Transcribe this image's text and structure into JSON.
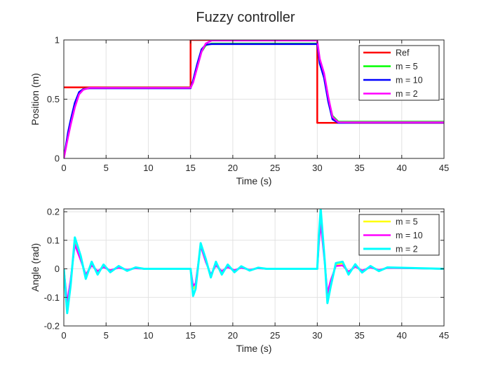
{
  "figure": {
    "title": "Fuzzy controller"
  },
  "chart_data": [
    {
      "type": "line",
      "title": "Fuzzy controller",
      "xlabel": "Time (s)",
      "ylabel": "Position (m)",
      "xlim": [
        0,
        45
      ],
      "ylim": [
        0,
        1
      ],
      "xticks": [
        0,
        5,
        10,
        15,
        20,
        25,
        30,
        35,
        40,
        45
      ],
      "yticks": [
        0,
        0.5,
        1
      ],
      "grid": true,
      "legend_position": "top-right",
      "series": [
        {
          "name": "Ref",
          "color": "#ff0000",
          "width": 2.5,
          "x": [
            0,
            15,
            15,
            30,
            30,
            45
          ],
          "y": [
            0.6,
            0.6,
            1,
            1,
            0.3,
            0.3
          ]
        },
        {
          "name": "m = 5",
          "color": "#00ff00",
          "width": 2.5,
          "x": [
            0,
            0.5,
            0.8,
            1.3,
            1.8,
            2.3,
            3,
            5,
            15,
            15.3,
            15.8,
            16.3,
            16.8,
            17.5,
            20,
            30,
            30.3,
            30.8,
            31.3,
            31.8,
            32.5,
            35,
            45
          ],
          "y": [
            0,
            0.2,
            0.3,
            0.45,
            0.55,
            0.585,
            0.595,
            0.597,
            0.597,
            0.65,
            0.78,
            0.9,
            0.955,
            0.97,
            0.97,
            0.97,
            0.82,
            0.7,
            0.5,
            0.36,
            0.31,
            0.31,
            0.31
          ]
        },
        {
          "name": "m = 10",
          "color": "#0000ff",
          "width": 2.5,
          "x": [
            0,
            0.5,
            0.8,
            1.3,
            1.8,
            2.3,
            3,
            5,
            15,
            15.3,
            15.8,
            16.3,
            16.8,
            17.5,
            20,
            30,
            30.3,
            30.8,
            31.3,
            31.8,
            32.5,
            35,
            45
          ],
          "y": [
            0,
            0.22,
            0.32,
            0.47,
            0.56,
            0.585,
            0.592,
            0.592,
            0.592,
            0.66,
            0.8,
            0.92,
            0.96,
            0.965,
            0.965,
            0.965,
            0.8,
            0.68,
            0.48,
            0.33,
            0.3,
            0.302,
            0.302
          ]
        },
        {
          "name": "m = 2",
          "color": "#ff00ff",
          "width": 2.5,
          "x": [
            0,
            0.5,
            0.8,
            1.3,
            1.8,
            2.3,
            3,
            5,
            15,
            15.3,
            15.8,
            16.3,
            16.8,
            17.5,
            20,
            30,
            30.3,
            30.8,
            31.3,
            31.8,
            32.5,
            35,
            45
          ],
          "y": [
            0,
            0.18,
            0.28,
            0.43,
            0.54,
            0.58,
            0.595,
            0.595,
            0.595,
            0.64,
            0.77,
            0.9,
            0.97,
            0.995,
            0.995,
            0.995,
            0.84,
            0.72,
            0.52,
            0.35,
            0.305,
            0.305,
            0.305
          ]
        }
      ]
    },
    {
      "type": "line",
      "xlabel": "Time (s)",
      "ylabel": "Angle (rad)",
      "xlim": [
        0,
        45
      ],
      "ylim": [
        -0.2,
        0.21
      ],
      "xticks": [
        0,
        5,
        10,
        15,
        20,
        25,
        30,
        35,
        40,
        45
      ],
      "yticks": [
        -0.2,
        -0.1,
        0,
        0.1,
        0.2
      ],
      "grid": true,
      "legend_position": "top-right",
      "series": [
        {
          "name": "m = 5",
          "color": "#ffff00",
          "width": 2.5,
          "x": [
            0,
            0.4,
            0.8,
            1.3,
            2,
            2.6,
            3.3,
            4,
            4.7,
            5.5,
            6.5,
            7.5,
            8.5,
            9.5,
            15,
            15.3,
            15.6,
            16.2,
            16.8,
            17.4,
            18,
            18.7,
            19.4,
            20.2,
            21,
            22,
            23,
            24,
            30,
            30.2,
            30.4,
            30.9,
            31.2,
            31.6,
            32.2,
            33,
            33.7,
            34.5,
            35.3,
            36.3,
            37.3,
            38.3,
            45
          ],
          "y": [
            0,
            -0.13,
            -0.05,
            0.1,
            0.04,
            -0.03,
            0.02,
            -0.015,
            0.012,
            -0.009,
            0.007,
            -0.005,
            0.004,
            0,
            0,
            -0.07,
            -0.06,
            0.085,
            0.03,
            -0.025,
            0.02,
            -0.015,
            0.01,
            -0.008,
            0.006,
            -0.004,
            0.003,
            0,
            0,
            0.1,
            0.2,
            0.02,
            -0.11,
            -0.05,
            0.015,
            0.02,
            -0.015,
            0.012,
            -0.01,
            0.008,
            -0.006,
            0.004,
            0
          ]
        },
        {
          "name": "m = 10",
          "color": "#ff00ff",
          "width": 2.5,
          "x": [
            0,
            0.4,
            0.8,
            1.3,
            2,
            2.6,
            3.3,
            4,
            4.7,
            5.5,
            6.5,
            7.5,
            8.5,
            9.5,
            15,
            15.3,
            15.6,
            16.2,
            16.8,
            17.4,
            18,
            18.7,
            19.4,
            20.2,
            21,
            22,
            23,
            24,
            30,
            30.2,
            30.4,
            30.9,
            31.2,
            31.6,
            32.2,
            33,
            33.7,
            34.5,
            35.3,
            36.3,
            37.3,
            38.3,
            45
          ],
          "y": [
            0,
            -0.12,
            -0.04,
            0.085,
            0.03,
            -0.02,
            0.012,
            -0.008,
            0.006,
            -0.005,
            0.004,
            -0.003,
            0.002,
            0,
            0,
            -0.06,
            -0.05,
            0.08,
            0.025,
            -0.02,
            0.012,
            -0.008,
            0.006,
            -0.005,
            0.004,
            -0.003,
            0.002,
            0,
            0,
            0.09,
            0.16,
            0.015,
            -0.085,
            -0.04,
            0.01,
            0.012,
            -0.01,
            0.008,
            -0.006,
            0.005,
            -0.004,
            0.003,
            0
          ]
        },
        {
          "name": "m = 2",
          "color": "#00ffff",
          "width": 3,
          "x": [
            0,
            0.4,
            0.8,
            1.3,
            2,
            2.6,
            3.3,
            4,
            4.7,
            5.5,
            6.5,
            7.5,
            8.5,
            9.5,
            15,
            15.3,
            15.6,
            16.2,
            16.8,
            17.4,
            18,
            18.7,
            19.4,
            20.2,
            21,
            22,
            23,
            24,
            30,
            30.2,
            30.4,
            30.9,
            31.2,
            31.6,
            32.2,
            33,
            33.7,
            34.5,
            35.3,
            36.3,
            37.3,
            38.3,
            45
          ],
          "y": [
            0,
            -0.155,
            -0.06,
            0.11,
            0.045,
            -0.035,
            0.025,
            -0.02,
            0.015,
            -0.012,
            0.01,
            -0.007,
            0.005,
            0,
            0,
            -0.095,
            -0.07,
            0.09,
            0.035,
            -0.03,
            0.025,
            -0.02,
            0.015,
            -0.012,
            0.009,
            -0.006,
            0.004,
            0,
            0,
            0.12,
            0.21,
            0.02,
            -0.12,
            -0.06,
            0.02,
            0.025,
            -0.02,
            0.016,
            -0.013,
            0.01,
            -0.008,
            0.005,
            0
          ]
        }
      ]
    }
  ]
}
